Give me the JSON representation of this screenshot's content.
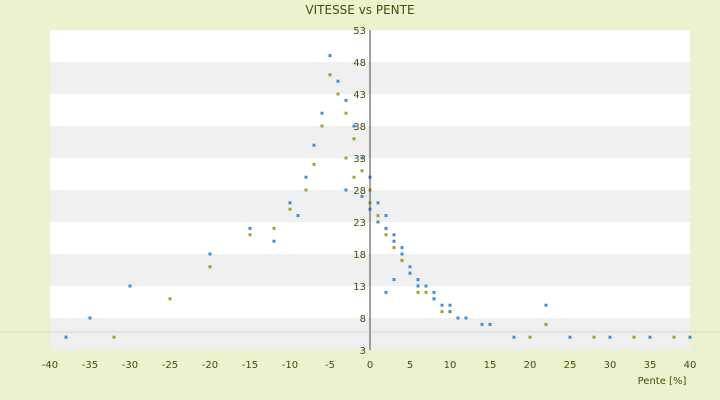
{
  "chart_data": {
    "type": "scatter",
    "title": "VITESSE vs PENTE",
    "xlabel": "Pente [%]",
    "ylabel": "",
    "xlim": [
      -40,
      40
    ],
    "ylim": [
      3,
      53
    ],
    "x_ticks": [
      "-40",
      "-35",
      "-30",
      "-25",
      "-20",
      "-15",
      "-10",
      "-5",
      "0",
      "5",
      "10",
      "15",
      "20",
      "25",
      "30",
      "35",
      "40"
    ],
    "y_ticks": [
      "3",
      "8",
      "13",
      "18",
      "23",
      "28",
      "33",
      "38",
      "43",
      "48",
      "53"
    ],
    "grid": "horizontal alternating bands",
    "legend": "none",
    "colors": {
      "series_a": "#3f8fd6",
      "series_b": "#a3a31c",
      "background": "#ecf2cd",
      "plot_area": "#ffffff",
      "band": "#efefef",
      "axis": "#444444"
    },
    "series": [
      {
        "color": "#3f8fd6",
        "x": [
          -5,
          -4,
          -3,
          -2,
          -1,
          0,
          1,
          2,
          3,
          4,
          5,
          6,
          7,
          8,
          9,
          10,
          12,
          15,
          -8,
          -10,
          -15,
          -20,
          -30,
          -35,
          -38,
          18,
          22,
          25,
          30,
          35,
          40,
          -6,
          -7,
          -3,
          2,
          3,
          4,
          1,
          0,
          -1,
          5,
          6,
          8,
          10,
          11,
          14,
          -12,
          -9,
          3,
          2
        ],
        "y": [
          49,
          45,
          42,
          38,
          33,
          30,
          26,
          22,
          20,
          18,
          16,
          14,
          13,
          11,
          10,
          9,
          8,
          7,
          30,
          26,
          22,
          18,
          13,
          8,
          5,
          5,
          10,
          5,
          5,
          5,
          5,
          40,
          35,
          28,
          24,
          21,
          19,
          23,
          25,
          27,
          15,
          13,
          12,
          10,
          8,
          7,
          20,
          24,
          14,
          12
        ]
      },
      {
        "color": "#a3a31c",
        "x": [
          -5,
          -4,
          -3,
          -2,
          -1,
          0,
          1,
          2,
          3,
          4,
          5,
          6,
          7,
          8,
          10,
          12,
          15,
          20,
          -8,
          -10,
          -12,
          -15,
          -20,
          -25,
          -32,
          -38,
          22,
          28,
          33,
          38,
          -6,
          -3,
          2,
          3,
          0,
          4,
          6,
          9,
          -7,
          -2
        ],
        "y": [
          46,
          43,
          40,
          36,
          31,
          28,
          24,
          21,
          19,
          17,
          15,
          13,
          12,
          11,
          9,
          8,
          7,
          5,
          28,
          25,
          22,
          21,
          16,
          11,
          5,
          5,
          7,
          5,
          5,
          5,
          38,
          33,
          22,
          19,
          26,
          17,
          12,
          9,
          32,
          30
        ]
      }
    ]
  }
}
